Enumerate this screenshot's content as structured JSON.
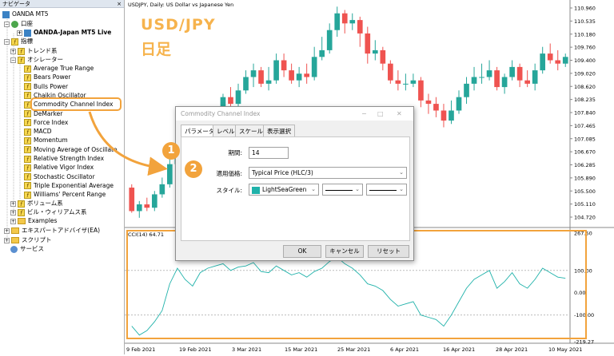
{
  "navigator": {
    "title": "ナビゲータ",
    "close": "×",
    "root": "OANDA MT5",
    "account": "口座",
    "account_item": "OANDA-Japan MT5 Live",
    "indicators": "指標",
    "trend": "トレンド系",
    "oscillators": "オシレーター",
    "osc_items": [
      "Average True Range",
      "Bears Power",
      "Bulls Power",
      "Chaikin Oscillator",
      "Commodity Channel Index",
      "DeMarker",
      "Force Index",
      "MACD",
      "Momentum",
      "Moving Average of Oscillato",
      "Relative Strength Index",
      "Relative Vigor Index",
      "Stochastic Oscillator",
      "Triple Exponential Average",
      "Williams' Percent Range"
    ],
    "volume": "ボリューム系",
    "bill": "ビル・ウィリアムス系",
    "examples": "Examples",
    "experts": "エキスパートアドバイザ(EA)",
    "scripts": "スクリプト",
    "services": "サービス"
  },
  "chart": {
    "header": "USDJPY, Daily:  US Dollar vs Japanese Yen",
    "overlay_pair": "USD/JPY",
    "overlay_tf": "日足",
    "cci_label": "CCI(14) 64.71",
    "price_ticks": [
      "110.960",
      "110.535",
      "110.180",
      "109.760",
      "109.400",
      "109.020",
      "108.620",
      "108.235",
      "107.840",
      "107.465",
      "107.085",
      "106.670",
      "106.285",
      "105.890",
      "105.500",
      "105.110",
      "104.720"
    ],
    "cci_ticks": [
      "267.50",
      "100.00",
      "0.00",
      "-100.00",
      "-219.27"
    ],
    "dates": [
      "9 Feb 2021",
      "19 Feb 2021",
      "3 Mar 2021",
      "15 Mar 2021",
      "25 Mar 2021",
      "6 Apr 2021",
      "16 Apr 2021",
      "28 Apr 2021",
      "10 May 2021"
    ],
    "candles": [
      [
        105.6,
        104.9,
        105.7,
        104.85
      ],
      [
        104.9,
        105.1,
        105.2,
        104.7
      ],
      [
        105.1,
        105.0,
        105.3,
        104.9
      ],
      [
        105.0,
        105.4,
        105.5,
        104.9
      ],
      [
        105.4,
        105.7,
        105.9,
        105.3
      ],
      [
        105.7,
        106.3,
        106.5,
        105.6
      ],
      [
        106.3,
        106.6,
        106.8,
        106.1
      ],
      [
        106.6,
        106.2,
        106.8,
        106.0
      ],
      [
        106.2,
        106.2,
        106.7,
        106.1
      ],
      [
        106.2,
        106.9,
        107.0,
        106.1
      ],
      [
        106.9,
        107.4,
        107.6,
        106.8
      ],
      [
        107.4,
        107.9,
        108.0,
        107.3
      ],
      [
        107.9,
        108.3,
        108.4,
        107.8
      ],
      [
        108.3,
        108.1,
        108.6,
        107.9
      ],
      [
        108.1,
        108.5,
        108.7,
        107.9
      ],
      [
        108.5,
        108.9,
        109.1,
        108.4
      ],
      [
        108.9,
        109.1,
        109.3,
        108.6
      ],
      [
        109.1,
        108.7,
        109.2,
        108.6
      ],
      [
        108.7,
        108.8,
        109.2,
        108.5
      ],
      [
        108.8,
        109.4,
        109.6,
        108.7
      ],
      [
        109.4,
        109.1,
        109.6,
        108.9
      ],
      [
        109.1,
        108.8,
        109.3,
        108.7
      ],
      [
        108.8,
        109.0,
        109.2,
        108.6
      ],
      [
        109.0,
        108.9,
        109.3,
        108.7
      ],
      [
        108.9,
        109.5,
        109.8,
        108.8
      ],
      [
        109.5,
        109.7,
        110.1,
        109.4
      ],
      [
        109.7,
        110.3,
        110.5,
        109.6
      ],
      [
        110.3,
        110.8,
        111.0,
        110.1
      ],
      [
        110.8,
        110.5,
        110.9,
        110.2
      ],
      [
        110.5,
        110.6,
        110.8,
        110.3
      ],
      [
        110.6,
        110.2,
        110.7,
        109.8
      ],
      [
        110.2,
        109.6,
        110.4,
        109.3
      ],
      [
        109.6,
        109.7,
        110.0,
        109.4
      ],
      [
        109.7,
        109.3,
        109.8,
        109.1
      ],
      [
        109.3,
        108.8,
        109.4,
        108.7
      ],
      [
        108.8,
        108.7,
        109.1,
        108.5
      ],
      [
        108.7,
        108.7,
        109.0,
        108.5
      ],
      [
        108.7,
        108.8,
        109.0,
        108.6
      ],
      [
        108.8,
        108.2,
        108.9,
        108.0
      ],
      [
        108.2,
        108.1,
        108.4,
        107.8
      ],
      [
        108.1,
        107.9,
        108.3,
        107.7
      ],
      [
        107.9,
        107.6,
        108.1,
        107.4
      ],
      [
        107.6,
        107.9,
        108.2,
        107.5
      ],
      [
        107.9,
        108.3,
        108.5,
        107.8
      ],
      [
        108.3,
        108.7,
        108.9,
        108.1
      ],
      [
        108.7,
        108.9,
        109.2,
        108.5
      ],
      [
        108.9,
        108.9,
        109.3,
        108.7
      ],
      [
        108.9,
        109.1,
        109.4,
        108.8
      ],
      [
        109.1,
        108.6,
        109.2,
        108.5
      ],
      [
        108.6,
        108.9,
        109.0,
        108.4
      ],
      [
        108.9,
        109.2,
        109.4,
        108.8
      ],
      [
        109.2,
        108.8,
        109.3,
        108.6
      ],
      [
        108.8,
        108.7,
        109.1,
        108.6
      ],
      [
        108.7,
        109.1,
        109.3,
        108.5
      ],
      [
        109.1,
        109.6,
        109.8,
        109.0
      ],
      [
        109.6,
        109.4,
        109.9,
        109.3
      ],
      [
        109.4,
        109.3,
        109.7,
        109.1
      ],
      [
        109.3,
        109.5,
        109.6,
        109.2
      ]
    ],
    "cci": [
      -150,
      -190,
      -170,
      -130,
      -80,
      40,
      110,
      60,
      30,
      90,
      110,
      120,
      130,
      100,
      115,
      120,
      135,
      95,
      90,
      120,
      100,
      80,
      90,
      70,
      95,
      110,
      140,
      160,
      130,
      110,
      80,
      40,
      30,
      10,
      -30,
      -60,
      -50,
      -40,
      -100,
      -110,
      -120,
      -150,
      -100,
      -40,
      20,
      60,
      80,
      100,
      20,
      50,
      90,
      40,
      20,
      60,
      110,
      90,
      70,
      65
    ]
  },
  "dialog": {
    "title": "Commodity Channel Index",
    "tabs": [
      "パラメータ",
      "レベル",
      "スケール",
      "表示選択"
    ],
    "period_label": "期間:",
    "period_value": "14",
    "price_label": "適用価格:",
    "price_value": "Typical Price (HLC/3)",
    "style_label": "スタイル:",
    "color_name": "LightSeaGreen",
    "ok": "OK",
    "cancel": "キャンセル",
    "reset": "リセット"
  },
  "badges": [
    "1",
    "2"
  ],
  "colors": {
    "accent": "#f2a33c",
    "bull": "#26a69a",
    "bear": "#ef5350",
    "cci": "#20b2aa"
  }
}
